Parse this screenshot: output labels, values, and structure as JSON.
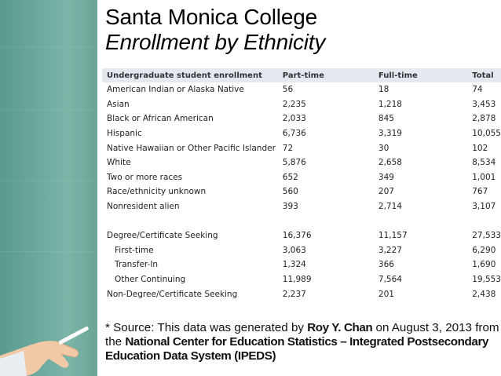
{
  "title": {
    "line1": "Santa Monica College",
    "line2": "Enrollment by Ethnicity"
  },
  "table": {
    "headers": [
      "Undergraduate student enrollment",
      "Part-time",
      "Full-time",
      "Total"
    ],
    "rows": [
      {
        "label": "American Indian or Alaska Native",
        "part_time": "56",
        "full_time": "18",
        "total": "74"
      },
      {
        "label": "Asian",
        "part_time": "2,235",
        "full_time": "1,218",
        "total": "3,453"
      },
      {
        "label": "Black or African American",
        "part_time": "2,033",
        "full_time": "845",
        "total": "2,878"
      },
      {
        "label": "Hispanic",
        "part_time": "6,736",
        "full_time": "3,319",
        "total": "10,055"
      },
      {
        "label": "Native Hawaiian or Other Pacific Islander",
        "part_time": "72",
        "full_time": "30",
        "total": "102"
      },
      {
        "label": "White",
        "part_time": "5,876",
        "full_time": "2,658",
        "total": "8,534"
      },
      {
        "label": "Two or more races",
        "part_time": "652",
        "full_time": "349",
        "total": "1,001"
      },
      {
        "label": "Race/ethnicity unknown",
        "part_time": "560",
        "full_time": "207",
        "total": "767"
      },
      {
        "label": "Nonresident alien",
        "part_time": "393",
        "full_time": "2,714",
        "total": "3,107"
      }
    ],
    "degree_rows": [
      {
        "label": "Degree/Certificate Seeking",
        "part_time": "16,376",
        "full_time": "11,157",
        "total": "27,533",
        "indent": false
      },
      {
        "label": "First-time",
        "part_time": "3,063",
        "full_time": "3,227",
        "total": "6,290",
        "indent": true
      },
      {
        "label": "Transfer-In",
        "part_time": "1,324",
        "full_time": "366",
        "total": "1,690",
        "indent": true
      },
      {
        "label": "Other Continuing",
        "part_time": "11,989",
        "full_time": "7,564",
        "total": "19,553",
        "indent": true
      },
      {
        "label": "Non-Degree/Certificate Seeking",
        "part_time": "2,237",
        "full_time": "201",
        "total": "2,438",
        "indent": false
      }
    ]
  },
  "source": {
    "prefix": "* Source: This data was generated by ",
    "author": "Roy Y. Chan",
    "middle": " on August 3, 2013 from the ",
    "organization": "National Center for Education Statistics – Integrated Postsecondary Education Data System (IPEDS)"
  },
  "colors": {
    "chalkboard": "#6aa89b",
    "table_header": "#e4e9ef"
  }
}
